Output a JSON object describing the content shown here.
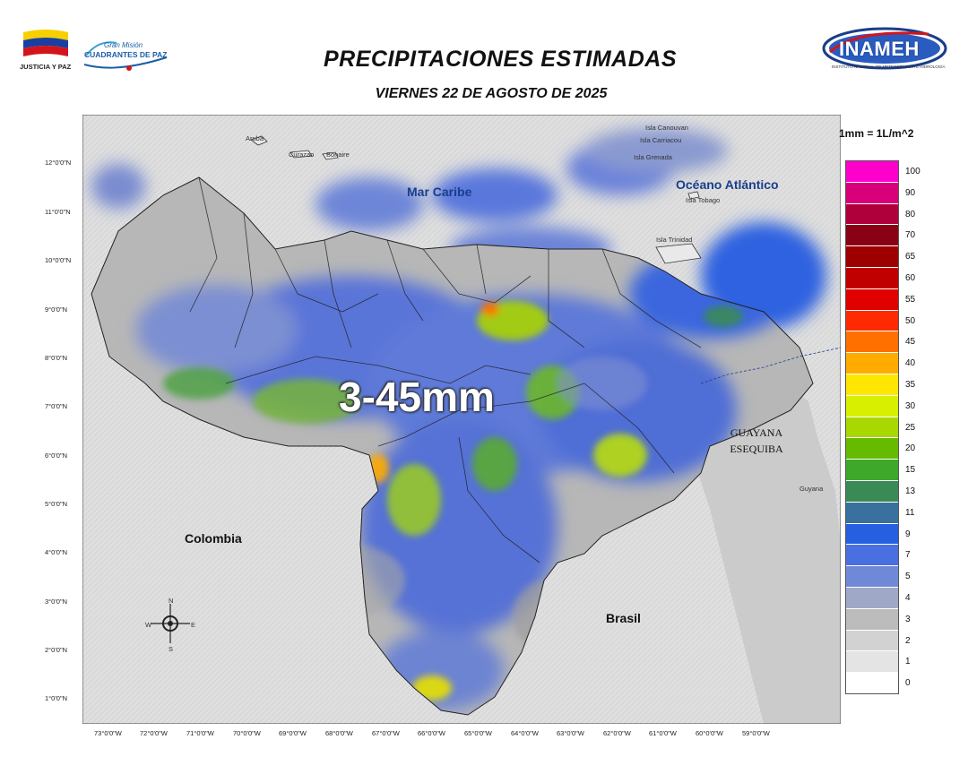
{
  "header": {
    "title": "PRECIPITACIONES ESTIMADAS",
    "subtitle": "VIERNES 22 DE AGOSTO DE 2025",
    "logo_left_caption": "JUSTICIA Y PAZ",
    "logo_mid_line1": "Gran Misión",
    "logo_mid_line2": "CUADRANTES DE PAZ",
    "logo_right": "INAMEH",
    "logo_right_sub": "INSTITUTO NACIONAL DE METEOROLOGÍA E HIDROLOGÍA"
  },
  "map": {
    "lat_labels": [
      "12°0'0\"N",
      "11°0'0\"N",
      "10°0'0\"N",
      "9°0'0\"N",
      "8°0'0\"N",
      "7°0'0\"N",
      "6°0'0\"N",
      "5°0'0\"N",
      "4°0'0\"N",
      "3°0'0\"N",
      "2°0'0\"N",
      "1°0'0\"N"
    ],
    "lon_labels": [
      "73°0'0\"W",
      "72°0'0\"W",
      "71°0'0\"W",
      "70°0'0\"W",
      "69°0'0\"W",
      "68°0'0\"W",
      "67°0'0\"W",
      "66°0'0\"W",
      "65°0'0\"W",
      "64°0'0\"W",
      "63°0'0\"W",
      "62°0'0\"W",
      "61°0'0\"W",
      "60°0'0\"W",
      "59°0'0\"W"
    ],
    "places": {
      "aruba": "Aruba",
      "curazao": "Curazao",
      "bonaire": "Bonaire",
      "canouvan": "Isla Canouvan",
      "carriacou": "Isla Carriacou",
      "grenada": "Isla Grenada",
      "tobago": "Isla Tobago",
      "trinidad": "Isla Trinidad",
      "guyana": "Guyana"
    },
    "seas": {
      "caribe": "Mar Caribe",
      "atlantico": "Océano Atlántico"
    },
    "countries": {
      "colombia": "Colombia",
      "brasil": "Brasil"
    },
    "guayana_line1": "GUAYANA",
    "guayana_line2": "ESEQUIBA",
    "range_text": "3-45mm",
    "compass": {
      "n": "N",
      "s": "S",
      "e": "E",
      "w": "W"
    }
  },
  "legend": {
    "title": "1mm = 1L/m^2",
    "items": [
      {
        "label": "100",
        "color": "#ff00cc"
      },
      {
        "label": "90",
        "color": "#d8007a"
      },
      {
        "label": "80",
        "color": "#b0003c"
      },
      {
        "label": "70",
        "color": "#8a0014"
      },
      {
        "label": "65",
        "color": "#9e0000"
      },
      {
        "label": "60",
        "color": "#c00000"
      },
      {
        "label": "55",
        "color": "#e00000"
      },
      {
        "label": "50",
        "color": "#ff2a00"
      },
      {
        "label": "45",
        "color": "#ff7000"
      },
      {
        "label": "40",
        "color": "#ffab00"
      },
      {
        "label": "35",
        "color": "#ffe600"
      },
      {
        "label": "30",
        "color": "#d8ef00"
      },
      {
        "label": "25",
        "color": "#a8d800"
      },
      {
        "label": "20",
        "color": "#66bb00"
      },
      {
        "label": "15",
        "color": "#3da82a"
      },
      {
        "label": "13",
        "color": "#3a8a56"
      },
      {
        "label": "11",
        "color": "#3a709e"
      },
      {
        "label": "9",
        "color": "#2660e0"
      },
      {
        "label": "7",
        "color": "#4a6fe0"
      },
      {
        "label": "5",
        "color": "#7088d8"
      },
      {
        "label": "4",
        "color": "#a0a8c8"
      },
      {
        "label": "3",
        "color": "#bcbcbc"
      },
      {
        "label": "2",
        "color": "#d2d2d2"
      },
      {
        "label": "1",
        "color": "#e4e4e4"
      },
      {
        "label": "0",
        "color": "#ffffff"
      }
    ]
  }
}
